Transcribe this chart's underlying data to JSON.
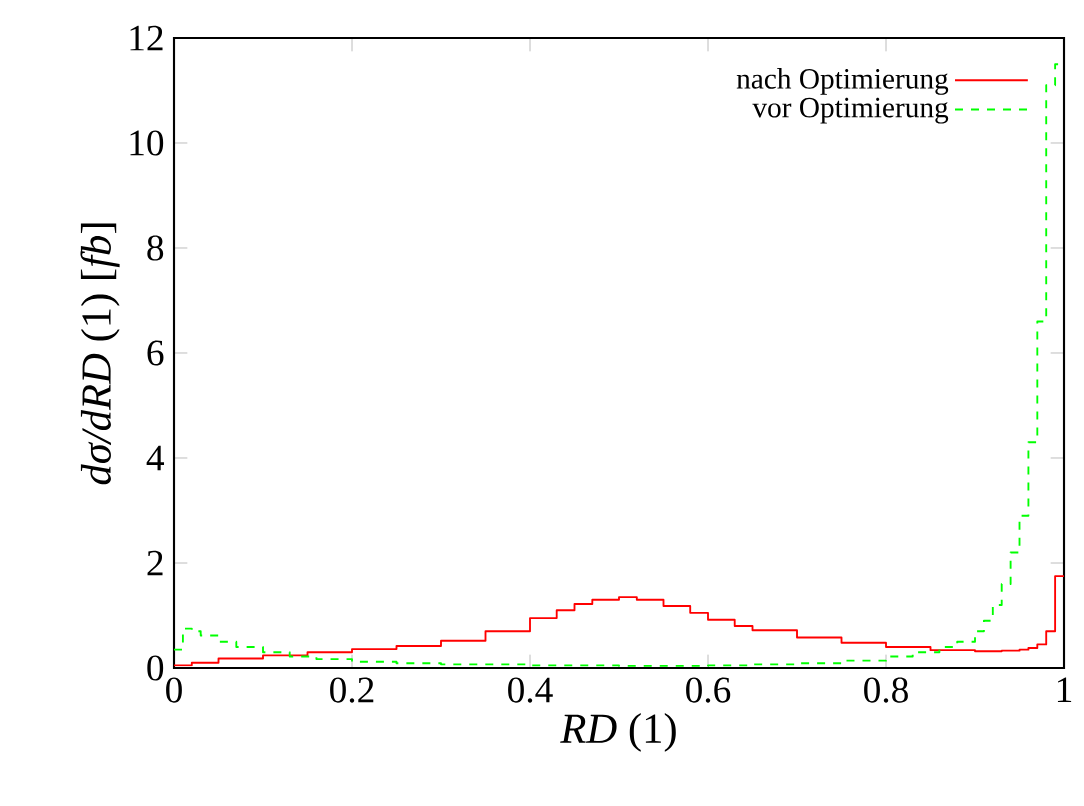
{
  "chart_data": {
    "type": "step",
    "xlabel": "*RD* (1)",
    "ylabel": "*dσ/dRD* (1) [*fb*]",
    "xlim": [
      0,
      1
    ],
    "ylim": [
      0,
      12
    ],
    "xticks": [
      0,
      0.2,
      0.4,
      0.6,
      0.8,
      1
    ],
    "yticks": [
      0,
      2,
      4,
      6,
      8,
      10,
      12
    ],
    "grid": false,
    "legend": "top right",
    "series": [
      {
        "name": "nach Optimierung",
        "color": "#ff0000",
        "line_style": "solid",
        "x": [
          0,
          0.02,
          0.05,
          0.1,
          0.15,
          0.2,
          0.25,
          0.3,
          0.35,
          0.4,
          0.43,
          0.45,
          0.47,
          0.5,
          0.52,
          0.55,
          0.58,
          0.6,
          0.63,
          0.65,
          0.7,
          0.75,
          0.8,
          0.85,
          0.9,
          0.93,
          0.95,
          0.96,
          0.97,
          0.98,
          0.99,
          1
        ],
        "values": [
          0.05,
          0.1,
          0.18,
          0.24,
          0.3,
          0.36,
          0.42,
          0.52,
          0.7,
          0.95,
          1.1,
          1.22,
          1.3,
          1.35,
          1.3,
          1.18,
          1.05,
          0.92,
          0.8,
          0.72,
          0.58,
          0.48,
          0.4,
          0.34,
          0.32,
          0.33,
          0.35,
          0.38,
          0.45,
          0.7,
          1.75,
          1.75
        ]
      },
      {
        "name": "vor Optimierung",
        "color": "#00ff00",
        "line_style": "dashed",
        "x": [
          0,
          0.01,
          0.02,
          0.03,
          0.05,
          0.07,
          0.1,
          0.13,
          0.16,
          0.2,
          0.25,
          0.3,
          0.4,
          0.5,
          0.6,
          0.65,
          0.7,
          0.75,
          0.8,
          0.83,
          0.86,
          0.88,
          0.9,
          0.91,
          0.92,
          0.93,
          0.94,
          0.95,
          0.96,
          0.97,
          0.98,
          0.99,
          1
        ],
        "values": [
          0.35,
          0.75,
          0.7,
          0.62,
          0.5,
          0.4,
          0.3,
          0.22,
          0.17,
          0.12,
          0.09,
          0.07,
          0.05,
          0.04,
          0.05,
          0.07,
          0.09,
          0.14,
          0.22,
          0.3,
          0.4,
          0.5,
          0.7,
          0.9,
          1.2,
          1.6,
          2.2,
          2.9,
          4.3,
          6.6,
          11.1,
          11.5,
          11.5
        ]
      }
    ]
  }
}
